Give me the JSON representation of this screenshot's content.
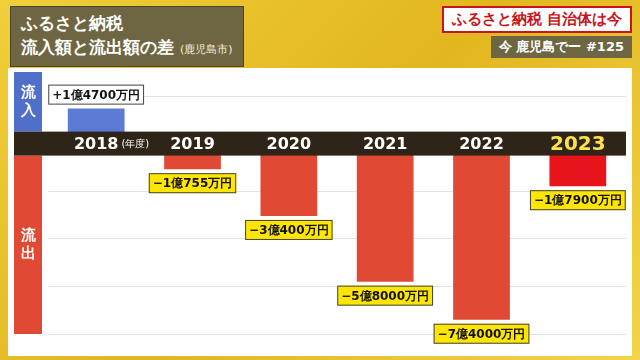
{
  "chart_data": {
    "type": "bar",
    "title": "ふるさと納税 流入額と流出額の差",
    "subtitle": "(鹿児島市)",
    "header": [
      "ふるさと納税 自治体は今",
      "今 鹿児島でー #125"
    ],
    "xlabel": "(年度)",
    "annotations": [
      "流入",
      "流出"
    ],
    "categories": [
      "2018",
      "2019",
      "2020",
      "2021",
      "2022",
      "2023"
    ],
    "values": [
      14700,
      -10755,
      -30400,
      -58000,
      -74000,
      -17900
    ],
    "value_labels": [
      "+1億4700万円",
      "−1億755万円",
      "−3億400万円",
      "−5億8000万円",
      "−7億4000万円",
      "−1億7900万円"
    ],
    "colors": [
      "#5b7bd5",
      "#e04a35",
      "#e04a35",
      "#e04a35",
      "#e04a35",
      "#e8141c"
    ],
    "ylim": [
      -80000,
      20000
    ],
    "yticks": [
      -80000,
      -60000,
      -40000,
      -20000,
      0,
      20000
    ],
    "grid": true,
    "data_labels": true,
    "tick_labels": "x"
  }
}
